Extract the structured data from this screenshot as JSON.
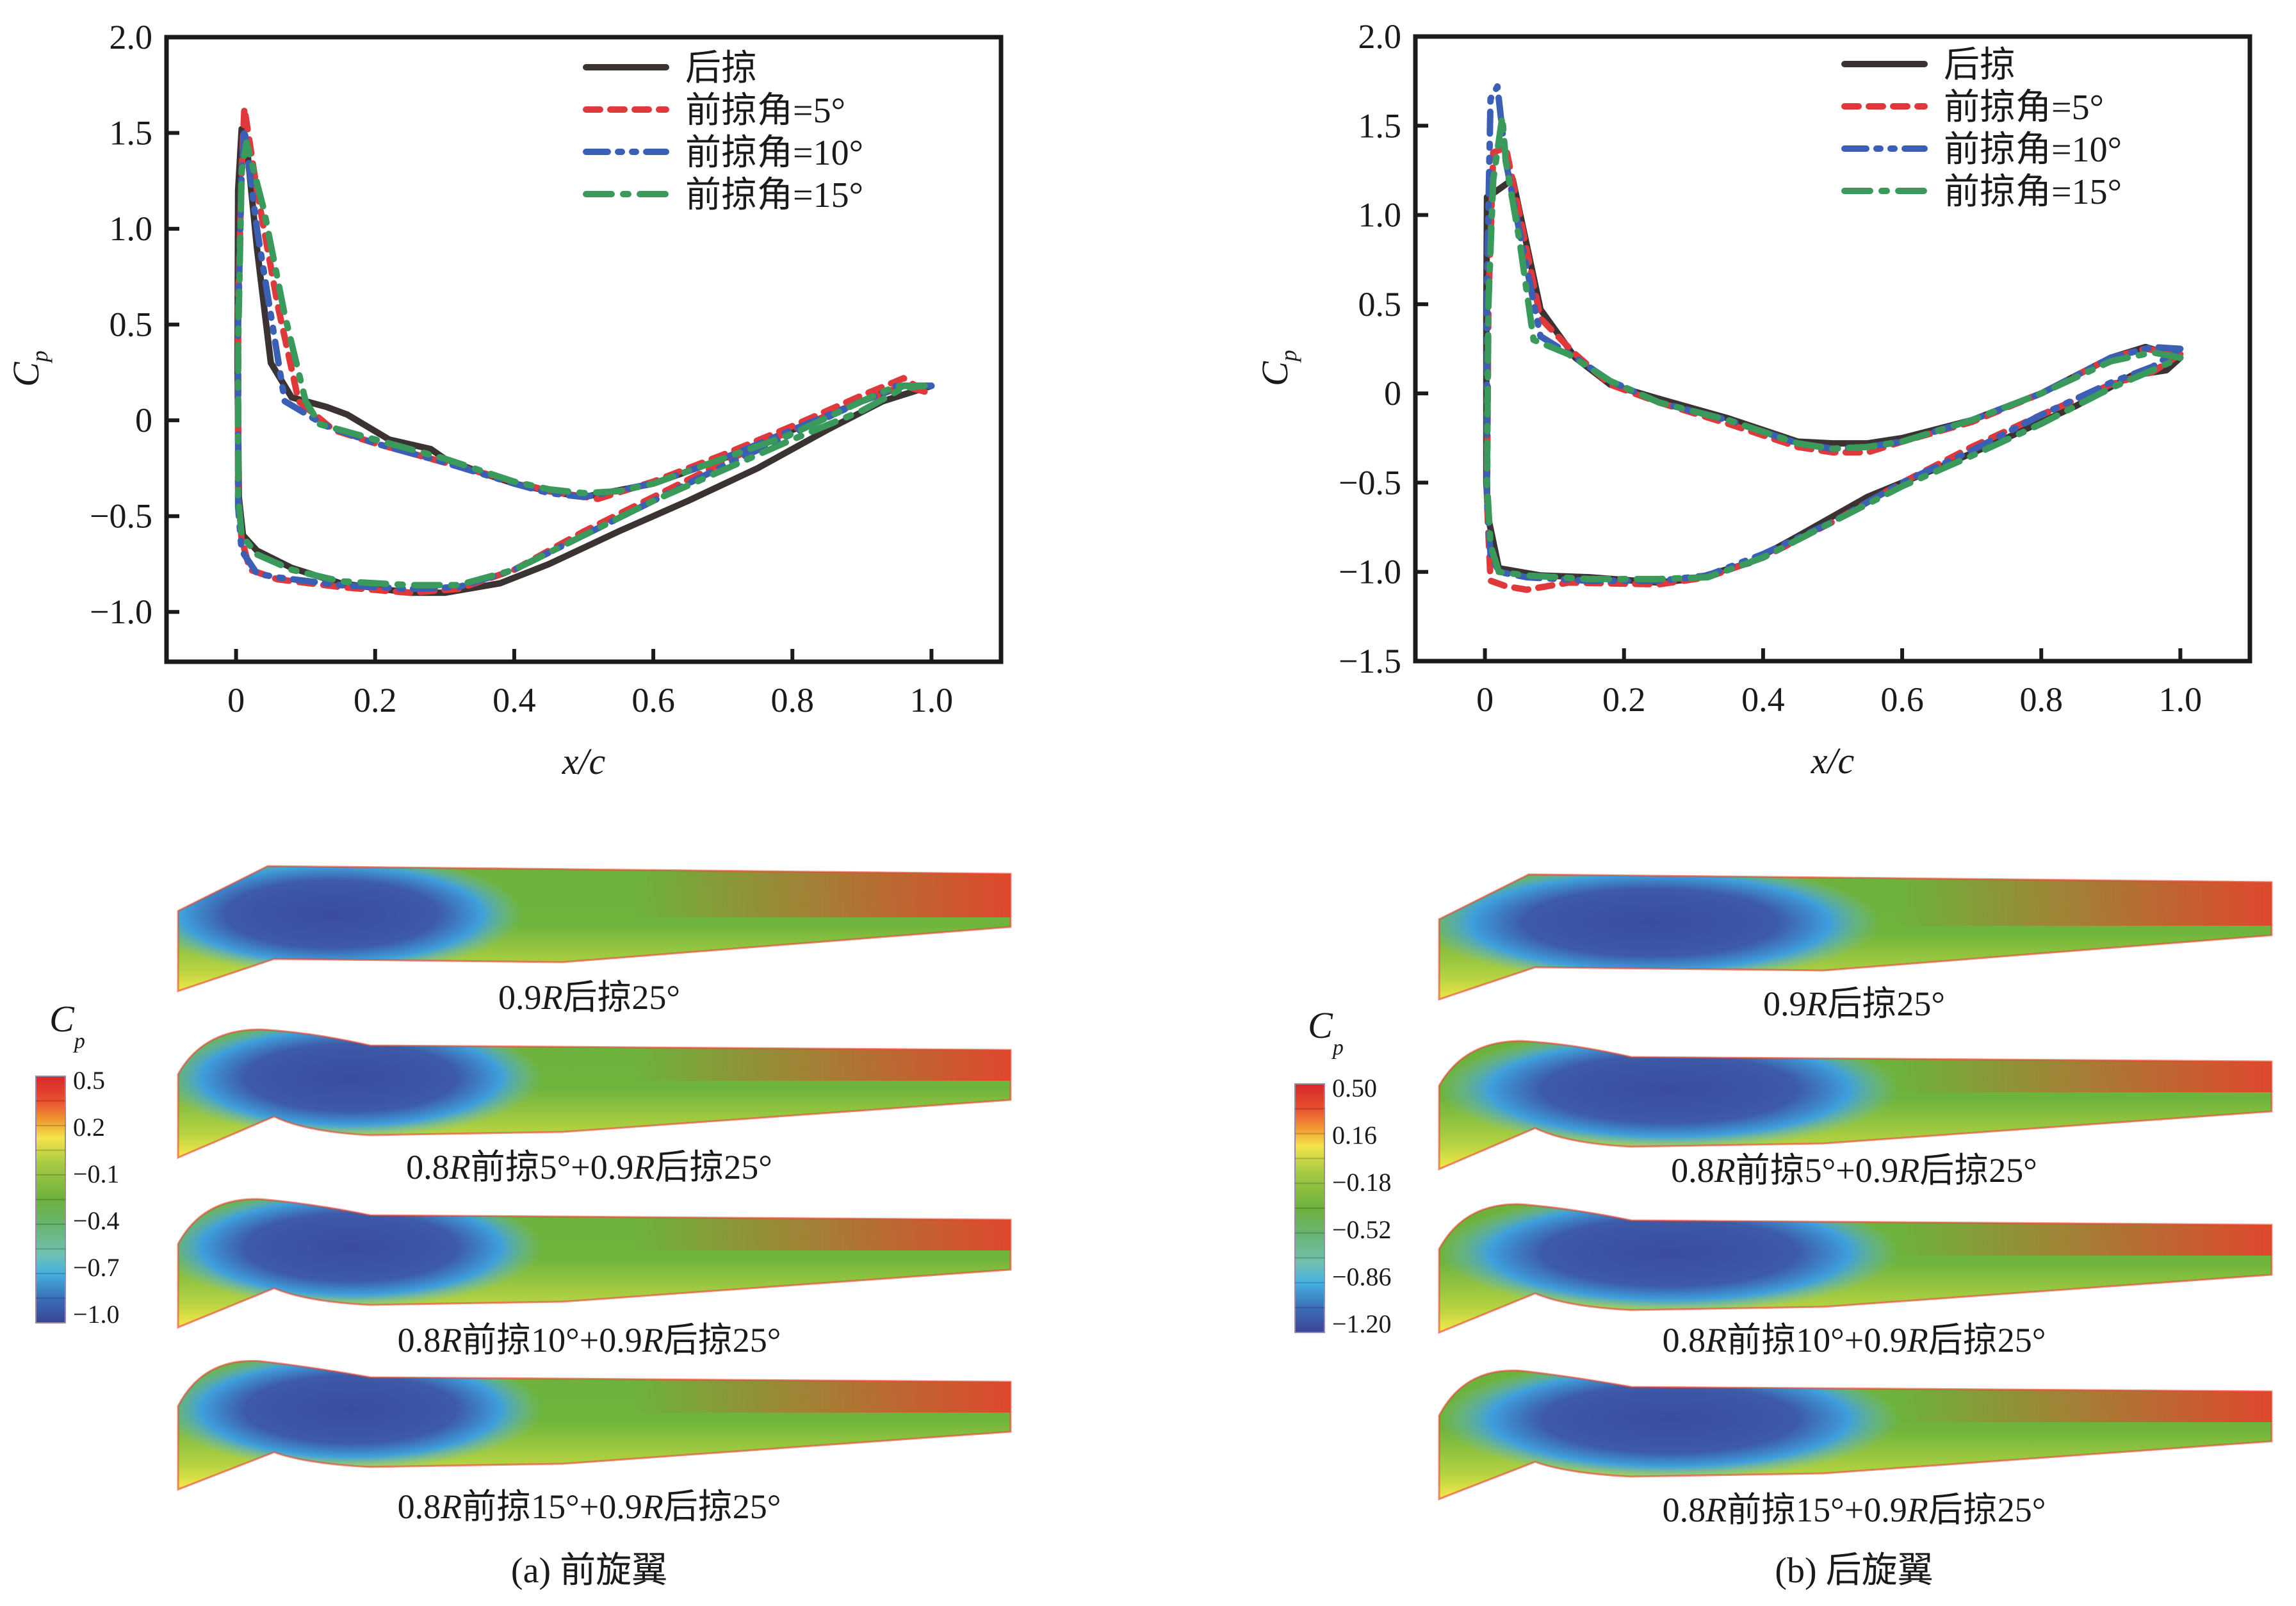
{
  "figure": {
    "panels": [
      {
        "id": "a",
        "caption": "(a) 前旋翼",
        "colorbar": {
          "title": "C",
          "title_sub": "p",
          "ticks": [
            "0.5",
            "0.2",
            "−0.1",
            "−0.4",
            "−0.7",
            "−1.0"
          ],
          "range": [
            -1.0,
            0.5
          ]
        },
        "wings": [
          {
            "label_pre": "0.9",
            "label_r1": "R",
            "label_post": "后掠25°",
            "shape": "straight"
          },
          {
            "label_pre": "0.8",
            "label_r1": "R",
            "label_mid": "前掠5°+0.9",
            "label_r2": "R",
            "label_post": "后掠25°",
            "shape": "fwd5"
          },
          {
            "label_pre": "0.8",
            "label_r1": "R",
            "label_mid": "前掠10°+0.9",
            "label_r2": "R",
            "label_post": "后掠25°",
            "shape": "fwd10"
          },
          {
            "label_pre": "0.8",
            "label_r1": "R",
            "label_mid": "前掠15°+0.9",
            "label_r2": "R",
            "label_post": "后掠25°",
            "shape": "fwd15"
          }
        ]
      },
      {
        "id": "b",
        "caption": "(b) 后旋翼",
        "colorbar": {
          "title": "C",
          "title_sub": "p",
          "ticks": [
            "0.50",
            "0.16",
            "−0.18",
            "−0.52",
            "−0.86",
            "−1.20"
          ],
          "range": [
            -1.2,
            0.5
          ]
        },
        "wings": [
          {
            "label_pre": "0.9",
            "label_r1": "R",
            "label_post": "后掠25°",
            "shape": "straight"
          },
          {
            "label_pre": "0.8",
            "label_r1": "R",
            "label_mid": "前掠5°+0.9",
            "label_r2": "R",
            "label_post": "后掠25°",
            "shape": "fwd5"
          },
          {
            "label_pre": "0.8",
            "label_r1": "R",
            "label_mid": "前掠10°+0.9",
            "label_r2": "R",
            "label_post": "后掠25°",
            "shape": "fwd10"
          },
          {
            "label_pre": "0.8",
            "label_r1": "R",
            "label_mid": "前掠15°+0.9",
            "label_r2": "R",
            "label_post": "后掠25°",
            "shape": "fwd15"
          }
        ]
      }
    ]
  },
  "chart_data": [
    {
      "type": "line",
      "panel": "a",
      "title": "",
      "xlabel": "x/c",
      "ylabel": "C_p",
      "xlim": [
        -0.1,
        1.1
      ],
      "ylim": [
        -1.26,
        2.0
      ],
      "xticks": [
        0,
        0.2,
        0.4,
        0.6,
        0.8,
        1.0
      ],
      "xtick_labels": [
        "0",
        "0.2",
        "0.4",
        "0.6",
        "0.8",
        "1.0"
      ],
      "yticks": [
        -1.0,
        -0.5,
        0,
        0.5,
        1.0,
        1.5,
        2.0
      ],
      "ytick_labels": [
        "−1.0",
        "−0.5",
        "0",
        "0.5",
        "1.0",
        "1.5",
        "2.0"
      ],
      "grid": false,
      "legend_position": "top-right",
      "series": [
        {
          "name": "后掠",
          "color": "#3a3332",
          "style": "solid",
          "x": [
            1.0,
            0.96,
            0.9,
            0.8,
            0.7,
            0.6,
            0.5,
            0.45,
            0.4,
            0.35,
            0.3,
            0.28,
            0.22,
            0.16,
            0.13,
            0.08,
            0.05,
            0.03,
            0.015,
            0.008,
            0.003,
            0.002,
            0.004,
            0.01,
            0.03,
            0.08,
            0.15,
            0.25,
            0.3,
            0.38,
            0.45,
            0.55,
            0.65,
            0.75,
            0.85,
            0.93,
            1.0
          ],
          "y": [
            0.18,
            0.18,
            0.1,
            -0.05,
            -0.2,
            -0.33,
            -0.4,
            -0.37,
            -0.33,
            -0.27,
            -0.2,
            -0.15,
            -0.1,
            0.03,
            0.07,
            0.12,
            0.3,
            0.9,
            1.45,
            1.52,
            1.2,
            0.3,
            -0.4,
            -0.6,
            -0.68,
            -0.77,
            -0.85,
            -0.9,
            -0.9,
            -0.85,
            -0.75,
            -0.58,
            -0.42,
            -0.25,
            -0.05,
            0.1,
            0.18
          ]
        },
        {
          "name": "前掠角=5°",
          "color": "#e0393b",
          "style": "dashed",
          "x": [
            0.99,
            0.96,
            0.9,
            0.8,
            0.7,
            0.6,
            0.52,
            0.45,
            0.4,
            0.3,
            0.2,
            0.14,
            0.09,
            0.06,
            0.03,
            0.012,
            0.008,
            0.003,
            0.003,
            0.008,
            0.02,
            0.06,
            0.15,
            0.25,
            0.32,
            0.4,
            0.5,
            0.6,
            0.7,
            0.8,
            0.9,
            0.96,
            0.99
          ],
          "y": [
            0.15,
            0.22,
            0.13,
            -0.03,
            -0.18,
            -0.32,
            -0.41,
            -0.37,
            -0.32,
            -0.22,
            -0.12,
            -0.05,
            0.1,
            0.6,
            1.2,
            1.63,
            1.3,
            0.6,
            -0.4,
            -0.62,
            -0.78,
            -0.83,
            -0.87,
            -0.9,
            -0.88,
            -0.78,
            -0.58,
            -0.4,
            -0.22,
            -0.05,
            0.1,
            0.18,
            0.15
          ]
        },
        {
          "name": "前掠角=10°",
          "color": "#3b5fb4",
          "style": "dashdotdot",
          "x": [
            1.0,
            0.95,
            0.9,
            0.8,
            0.7,
            0.6,
            0.5,
            0.45,
            0.4,
            0.3,
            0.2,
            0.13,
            0.07,
            0.05,
            0.03,
            0.012,
            0.008,
            0.003,
            0.003,
            0.008,
            0.03,
            0.06,
            0.15,
            0.25,
            0.32,
            0.4,
            0.5,
            0.6,
            0.7,
            0.8,
            0.9,
            0.96,
            1.0
          ],
          "y": [
            0.18,
            0.18,
            0.1,
            -0.05,
            -0.2,
            -0.33,
            -0.4,
            -0.38,
            -0.33,
            -0.22,
            -0.12,
            -0.03,
            0.1,
            0.55,
            1.0,
            1.52,
            1.3,
            0.5,
            -0.45,
            -0.68,
            -0.8,
            -0.82,
            -0.86,
            -0.88,
            -0.87,
            -0.78,
            -0.6,
            -0.42,
            -0.24,
            -0.07,
            0.1,
            0.18,
            0.18
          ]
        },
        {
          "name": "前掠角=15°",
          "color": "#3a9a5b",
          "style": "dashdot",
          "x": [
            0.99,
            0.95,
            0.9,
            0.8,
            0.7,
            0.6,
            0.55,
            0.5,
            0.45,
            0.4,
            0.3,
            0.2,
            0.12,
            0.1,
            0.07,
            0.04,
            0.015,
            0.008,
            0.003,
            0.003,
            0.008,
            0.03,
            0.08,
            0.15,
            0.25,
            0.32,
            0.4,
            0.5,
            0.6,
            0.7,
            0.8,
            0.9,
            0.96,
            0.99
          ],
          "y": [
            0.18,
            0.18,
            0.1,
            -0.07,
            -0.2,
            -0.33,
            -0.37,
            -0.38,
            -0.36,
            -0.32,
            -0.2,
            -0.1,
            -0.02,
            0.1,
            0.55,
            1.1,
            1.45,
            1.3,
            0.4,
            -0.4,
            -0.6,
            -0.7,
            -0.78,
            -0.84,
            -0.86,
            -0.86,
            -0.78,
            -0.6,
            -0.42,
            -0.26,
            -0.1,
            0.05,
            0.17,
            0.18
          ]
        }
      ]
    },
    {
      "type": "line",
      "panel": "b",
      "title": "",
      "xlabel": "x/c",
      "ylabel": "C_p",
      "xlim": [
        -0.1,
        1.1
      ],
      "ylim": [
        -1.5,
        2.0
      ],
      "xticks": [
        0,
        0.2,
        0.4,
        0.6,
        0.8,
        1.0
      ],
      "xtick_labels": [
        "0",
        "0.2",
        "0.4",
        "0.6",
        "0.8",
        "1.0"
      ],
      "yticks": [
        -1.5,
        -1.0,
        -0.5,
        0,
        0.5,
        1.0,
        1.5,
        2.0
      ],
      "ytick_labels": [
        "−1.5",
        "−1.0",
        "−0.5",
        "0",
        "0.5",
        "1.0",
        "1.5",
        "2.0"
      ],
      "grid": false,
      "legend_position": "top-right",
      "series": [
        {
          "name": "后掠",
          "color": "#3a3332",
          "style": "solid",
          "x": [
            1.0,
            0.95,
            0.9,
            0.8,
            0.7,
            0.6,
            0.55,
            0.5,
            0.45,
            0.35,
            0.25,
            0.18,
            0.13,
            0.08,
            0.04,
            0.015,
            0.003,
            0.002,
            0.002,
            0.005,
            0.02,
            0.08,
            0.15,
            0.25,
            0.3,
            0.38,
            0.45,
            0.55,
            0.65,
            0.75,
            0.85,
            0.93,
            0.98,
            1.0
          ],
          "y": [
            0.2,
            0.26,
            0.2,
            0.0,
            -0.15,
            -0.25,
            -0.28,
            -0.28,
            -0.27,
            -0.14,
            -0.03,
            0.05,
            0.2,
            0.47,
            1.2,
            1.13,
            1.1,
            0.5,
            -0.5,
            -0.7,
            -0.98,
            -1.02,
            -1.03,
            -1.06,
            -1.04,
            -0.95,
            -0.8,
            -0.58,
            -0.42,
            -0.25,
            -0.07,
            0.1,
            0.13,
            0.2
          ]
        },
        {
          "name": "前掠角=5°",
          "color": "#e0393b",
          "style": "dashed",
          "x": [
            1.0,
            0.95,
            0.9,
            0.8,
            0.7,
            0.6,
            0.55,
            0.5,
            0.45,
            0.35,
            0.25,
            0.18,
            0.13,
            0.08,
            0.05,
            0.03,
            0.012,
            0.005,
            0.003,
            0.008,
            0.03,
            0.06,
            0.12,
            0.25,
            0.32,
            0.4,
            0.5,
            0.6,
            0.7,
            0.8,
            0.9,
            0.96,
            1.0
          ],
          "y": [
            0.22,
            0.25,
            0.2,
            0.0,
            -0.16,
            -0.27,
            -0.33,
            -0.33,
            -0.3,
            -0.17,
            -0.05,
            0.05,
            0.22,
            0.42,
            1.0,
            1.38,
            1.35,
            0.5,
            -0.6,
            -1.05,
            -1.08,
            -1.1,
            -1.06,
            -1.07,
            -1.03,
            -0.92,
            -0.72,
            -0.5,
            -0.3,
            -0.12,
            0.05,
            0.12,
            0.22
          ]
        },
        {
          "name": "前掠角=10°",
          "color": "#3b5fb4",
          "style": "dashdotdot",
          "x": [
            1.0,
            0.96,
            0.9,
            0.8,
            0.7,
            0.6,
            0.55,
            0.5,
            0.45,
            0.35,
            0.25,
            0.18,
            0.13,
            0.08,
            0.05,
            0.03,
            0.018,
            0.008,
            0.003,
            0.003,
            0.008,
            0.02,
            0.06,
            0.15,
            0.25,
            0.32,
            0.4,
            0.5,
            0.6,
            0.7,
            0.8,
            0.9,
            0.96,
            1.0
          ],
          "y": [
            0.25,
            0.26,
            0.2,
            0.0,
            -0.15,
            -0.27,
            -0.3,
            -0.31,
            -0.28,
            -0.15,
            -0.05,
            0.07,
            0.2,
            0.32,
            0.9,
            1.3,
            1.72,
            1.65,
            0.6,
            -0.6,
            -0.9,
            -1.0,
            -1.03,
            -1.05,
            -1.05,
            -1.02,
            -0.9,
            -0.72,
            -0.5,
            -0.32,
            -0.12,
            0.06,
            0.15,
            0.25
          ]
        },
        {
          "name": "前掠角=15°",
          "color": "#3a9a5b",
          "style": "dashdot",
          "x": [
            1.0,
            0.96,
            0.9,
            0.8,
            0.7,
            0.6,
            0.55,
            0.5,
            0.45,
            0.35,
            0.25,
            0.18,
            0.12,
            0.07,
            0.05,
            0.03,
            0.025,
            0.012,
            0.005,
            0.003,
            0.008,
            0.02,
            0.06,
            0.15,
            0.25,
            0.32,
            0.4,
            0.5,
            0.6,
            0.7,
            0.8,
            0.9,
            0.96,
            1.0
          ],
          "y": [
            0.2,
            0.23,
            0.18,
            0.0,
            -0.15,
            -0.27,
            -0.3,
            -0.31,
            -0.28,
            -0.15,
            -0.05,
            0.07,
            0.22,
            0.3,
            0.85,
            1.3,
            1.55,
            1.2,
            0.5,
            -0.5,
            -0.85,
            -1.0,
            -1.02,
            -1.04,
            -1.04,
            -1.03,
            -0.92,
            -0.72,
            -0.52,
            -0.35,
            -0.17,
            0.03,
            0.13,
            0.2
          ]
        }
      ]
    }
  ]
}
